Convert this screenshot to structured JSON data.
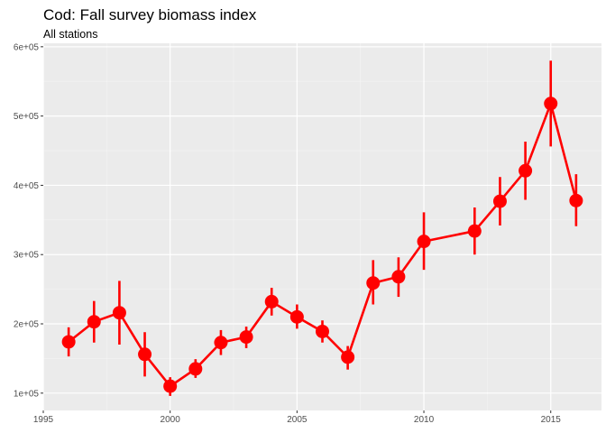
{
  "chart_data": {
    "type": "line",
    "title": "Cod: Fall survey biomass index",
    "subtitle": "All stations",
    "xlabel": "",
    "ylabel": "",
    "xlim": [
      1995,
      2017
    ],
    "ylim": [
      75000,
      605000
    ],
    "x_ticks": [
      1995,
      2000,
      2005,
      2010,
      2015
    ],
    "x_tick_labels": [
      "1995",
      "2000",
      "2005",
      "2010",
      "2015"
    ],
    "y_ticks": [
      100000,
      200000,
      300000,
      400000,
      500000,
      600000
    ],
    "y_tick_labels": [
      "1e+05",
      "2e+05",
      "3e+05",
      "4e+05",
      "5e+05",
      "6e+05"
    ],
    "grid": true,
    "legend": "none",
    "series": [
      {
        "color": "#ff0000",
        "points": [
          {
            "x": 1996,
            "y": 174000,
            "lower": 153000,
            "upper": 195000
          },
          {
            "x": 1997,
            "y": 203000,
            "lower": 173000,
            "upper": 233000
          },
          {
            "x": 1998,
            "y": 216000,
            "lower": 170000,
            "upper": 262000
          },
          {
            "x": 1999,
            "y": 156000,
            "lower": 124000,
            "upper": 188000
          },
          {
            "x": 2000,
            "y": 110000,
            "lower": 96000,
            "upper": 123000
          },
          {
            "x": 2001,
            "y": 135000,
            "lower": 122000,
            "upper": 149000
          },
          {
            "x": 2002,
            "y": 173000,
            "lower": 155000,
            "upper": 191000
          },
          {
            "x": 2003,
            "y": 181000,
            "lower": 165000,
            "upper": 196000
          },
          {
            "x": 2004,
            "y": 232000,
            "lower": 212000,
            "upper": 252000
          },
          {
            "x": 2005,
            "y": 210000,
            "lower": 193000,
            "upper": 228000
          },
          {
            "x": 2006,
            "y": 189000,
            "lower": 173000,
            "upper": 205000
          },
          {
            "x": 2007,
            "y": 152000,
            "lower": 134000,
            "upper": 168000
          },
          {
            "x": 2008,
            "y": 259000,
            "lower": 228000,
            "upper": 292000
          },
          {
            "x": 2009,
            "y": 268000,
            "lower": 239000,
            "upper": 296000
          },
          {
            "x": 2010,
            "y": 319000,
            "lower": 278000,
            "upper": 361000
          },
          {
            "x": 2012,
            "y": 334000,
            "lower": 300000,
            "upper": 368000
          },
          {
            "x": 2013,
            "y": 377000,
            "lower": 342000,
            "upper": 412000
          },
          {
            "x": 2014,
            "y": 421000,
            "lower": 379000,
            "upper": 463000
          },
          {
            "x": 2015,
            "y": 518000,
            "lower": 456000,
            "upper": 580000
          },
          {
            "x": 2016,
            "y": 378000,
            "lower": 341000,
            "upper": 416000
          }
        ]
      }
    ]
  }
}
